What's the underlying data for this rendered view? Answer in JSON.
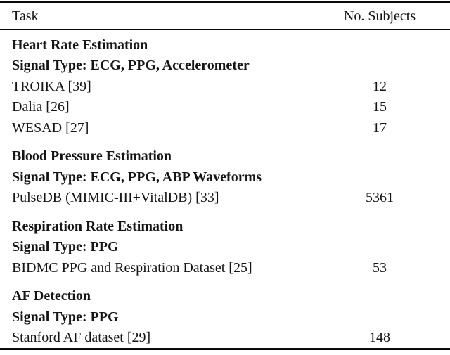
{
  "table": {
    "header": {
      "task": "Task",
      "subjects": "No. Subjects"
    },
    "sections": [
      {
        "title": "Heart Rate Estimation",
        "signal_type": "Signal Type: ECG, PPG, Accelerometer",
        "rows": [
          {
            "dataset": "TROIKA [39]",
            "subjects": "12"
          },
          {
            "dataset": "Dalia [26]",
            "subjects": "15"
          },
          {
            "dataset": "WESAD [27]",
            "subjects": "17"
          }
        ]
      },
      {
        "title": "Blood Pressure Estimation",
        "signal_type": "Signal Type: ECG, PPG, ABP Waveforms",
        "rows": [
          {
            "dataset": "PulseDB (MIMIC-III+VitalDB) [33]",
            "subjects": "5361"
          }
        ]
      },
      {
        "title": "Respiration Rate Estimation",
        "signal_type": "Signal Type: PPG",
        "rows": [
          {
            "dataset": "BIDMC PPG and Respiration Dataset [25]",
            "subjects": "53"
          }
        ]
      },
      {
        "title": "AF Detection",
        "signal_type": "Signal Type: PPG",
        "rows": [
          {
            "dataset": "Stanford AF dataset [29]",
            "subjects": "148"
          }
        ]
      }
    ],
    "colors": {
      "text": "#151515",
      "rule": "#0a0a0a",
      "background": "#ffffff"
    }
  }
}
